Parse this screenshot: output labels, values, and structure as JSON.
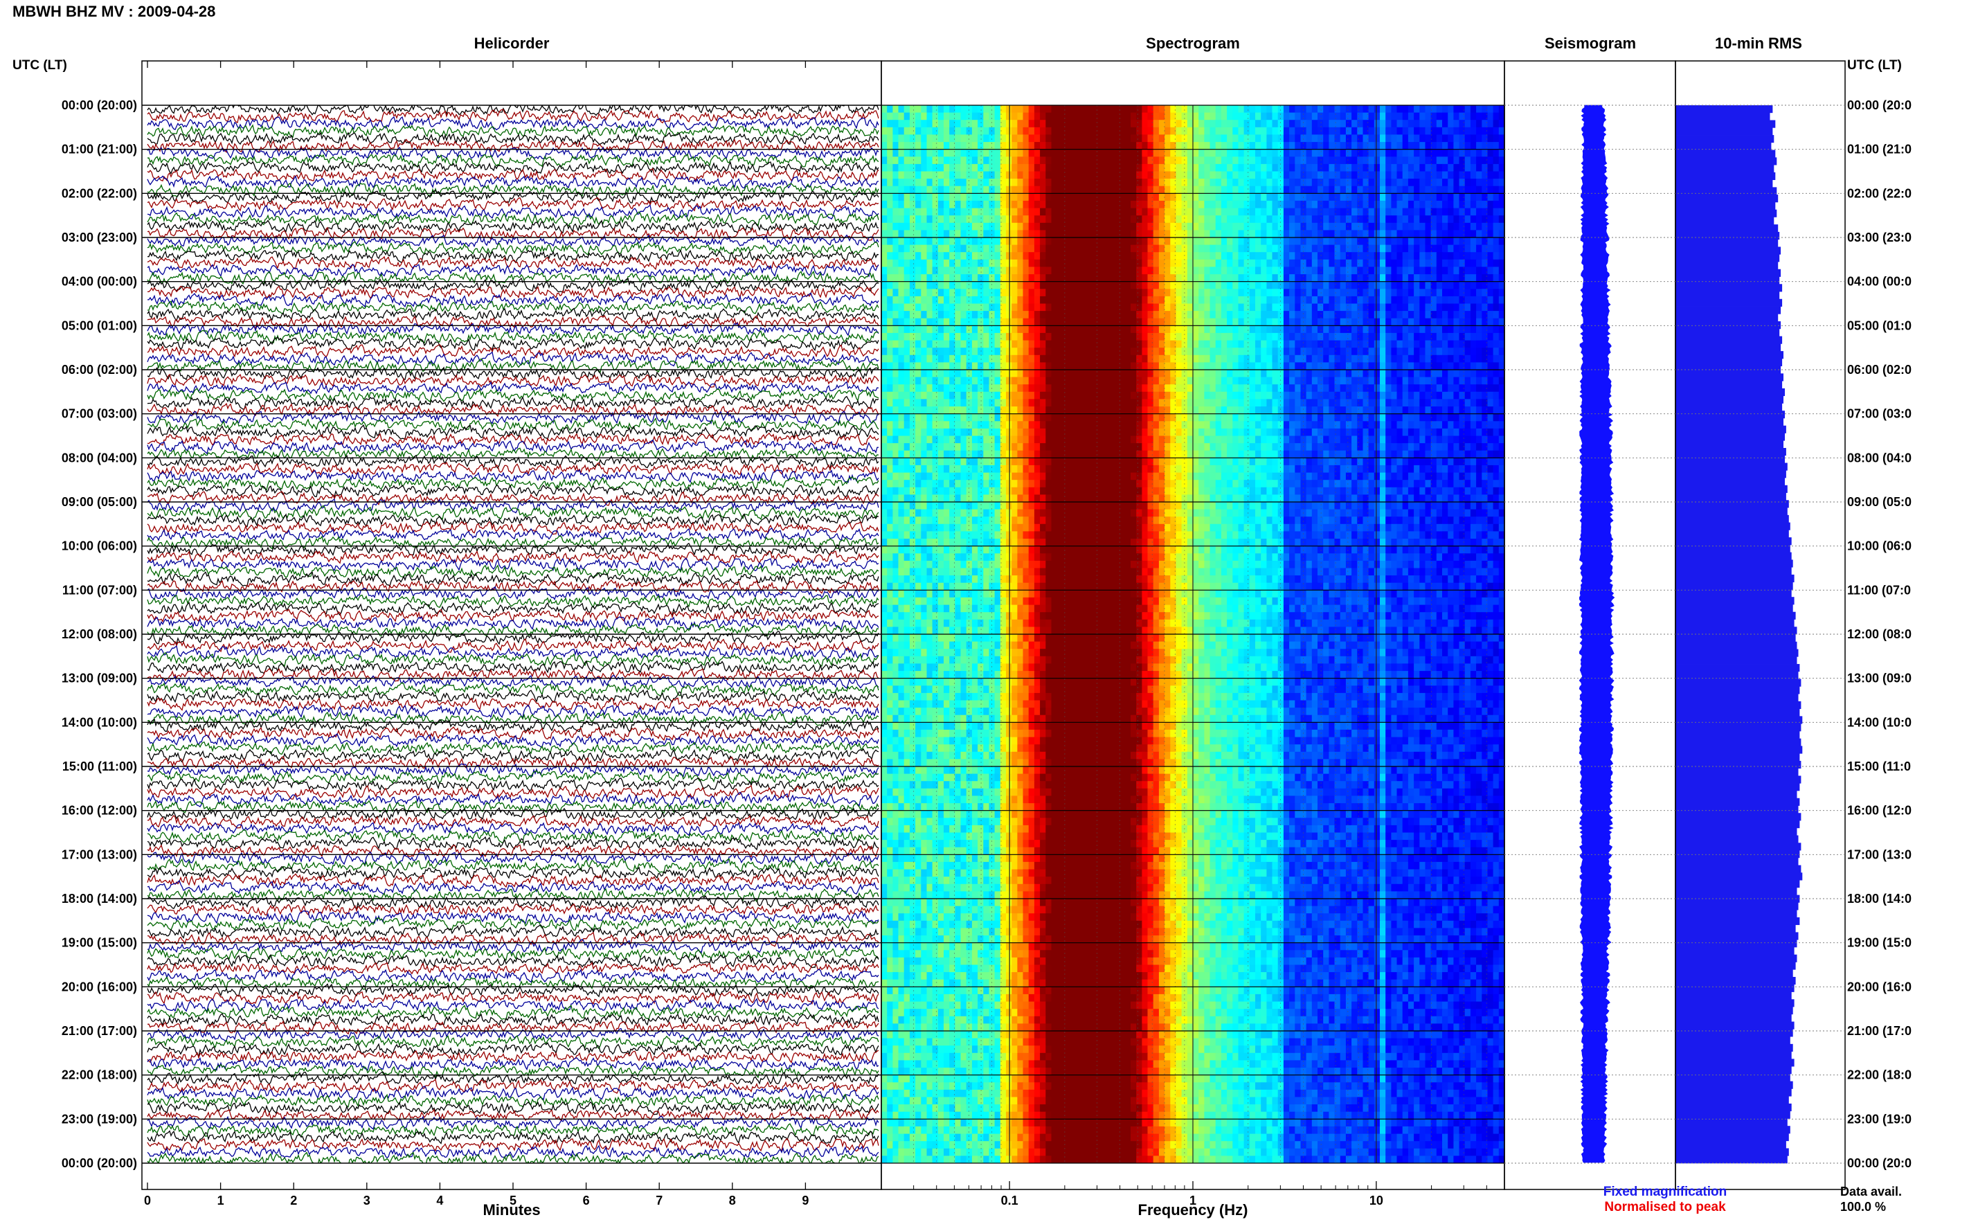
{
  "header": {
    "station_title": "MBWH BHZ MV : 2009-04-28",
    "utc_label_left": "UTC (LT)",
    "utc_label_right": "UTC (LT)"
  },
  "panels": {
    "helicorder_title": "Helicorder",
    "spectrogram_title": "Spectrogram",
    "seismogram_title": "Seismogram",
    "rms_title": "10-min RMS"
  },
  "footer": {
    "minutes_label": "Minutes",
    "frequency_label": "Frequency (Hz)",
    "fixed_magnification": "Fixed magnification",
    "normalised_to_peak": "Normalised to peak",
    "data_avail_label": "Data avail.",
    "data_avail_value": "100.0 %"
  },
  "colors": {
    "trace_cycle": [
      "#000000",
      "#990000",
      "#000099",
      "#006600"
    ],
    "seismogram": "#1010ff",
    "rms": "#1a1aee",
    "fixed_text": "#1a1aee",
    "normalised_text": "#ee0000",
    "spectrogram_colormap": "jet"
  },
  "chart_data": [
    {
      "type": "line",
      "name": "helicorder",
      "x_ticks": [
        "0",
        "1",
        "2",
        "3",
        "4",
        "5",
        "6",
        "7",
        "8",
        "9"
      ],
      "xlim": [
        0,
        10
      ],
      "row_labels_left": [
        "00:00 (20:00)",
        "01:00 (21:00)",
        "02:00 (22:00)",
        "03:00 (23:00)",
        "04:00 (00:00)",
        "05:00 (01:00)",
        "06:00 (02:00)",
        "07:00 (03:00)",
        "08:00 (04:00)",
        "09:00 (05:00)",
        "10:00 (06:00)",
        "11:00 (07:00)",
        "12:00 (08:00)",
        "13:00 (09:00)",
        "14:00 (10:00)",
        "15:00 (11:00)",
        "16:00 (12:00)",
        "17:00 (13:00)",
        "18:00 (14:00)",
        "19:00 (15:00)",
        "20:00 (16:00)",
        "21:00 (17:00)",
        "22:00 (18:00)",
        "23:00 (19:00)",
        "00:00 (20:00)"
      ],
      "row_labels_right": [
        "00:00 (20:0",
        "01:00 (21:0",
        "02:00 (22:0",
        "03:00 (23:0",
        "04:00 (00:0",
        "05:00 (01:0",
        "06:00 (02:0",
        "07:00 (03:0",
        "08:00 (04:0",
        "09:00 (05:0",
        "10:00 (06:0",
        "11:00 (07:0",
        "12:00 (08:0",
        "13:00 (09:0",
        "14:00 (10:0",
        "15:00 (11:0",
        "16:00 (12:0",
        "17:00 (13:0",
        "18:00 (14:0",
        "19:00 (15:0",
        "20:00 (16:0",
        "21:00 (17:0",
        "22:00 (18:0",
        "23:00 (19:0",
        "00:00 (20:0"
      ],
      "traces_per_hour": 6,
      "hours": 24
    },
    {
      "type": "heatmap",
      "name": "spectrogram",
      "x_scale": "log",
      "xlim": [
        0.02,
        50
      ],
      "x_tick_labels": [
        "0.1",
        "1",
        "10"
      ],
      "x_tick_values": [
        0.1,
        1,
        10
      ],
      "dominant_band_hz": [
        0.2,
        0.4
      ],
      "narrow_line_hz": 10.5
    },
    {
      "type": "line",
      "name": "seismogram"
    },
    {
      "type": "bar",
      "name": "rms_10min",
      "orientation": "horizontal",
      "values": [
        0.72,
        0.7,
        0.74,
        0.72,
        0.73,
        0.71,
        0.74,
        0.75,
        0.73,
        0.74,
        0.72,
        0.75,
        0.76,
        0.74,
        0.75,
        0.73,
        0.76,
        0.77,
        0.76,
        0.78,
        0.77,
        0.76,
        0.78,
        0.77,
        0.79,
        0.77,
        0.79,
        0.78,
        0.76,
        0.78,
        0.77,
        0.79,
        0.78,
        0.8,
        0.79,
        0.78,
        0.8,
        0.79,
        0.81,
        0.8,
        0.79,
        0.81,
        0.8,
        0.82,
        0.81,
        0.8,
        0.82,
        0.81,
        0.83,
        0.82,
        0.81,
        0.83,
        0.82,
        0.84,
        0.83,
        0.84,
        0.85,
        0.84,
        0.86,
        0.85,
        0.86,
        0.87,
        0.86,
        0.88,
        0.87,
        0.86,
        0.88,
        0.87,
        0.89,
        0.88,
        0.9,
        0.89,
        0.9,
        0.91,
        0.9,
        0.92,
        0.91,
        0.93,
        0.92,
        0.91,
        0.93,
        0.92,
        0.94,
        0.93,
        0.92,
        0.93,
        0.94,
        0.92,
        0.93,
        0.91,
        0.93,
        0.92,
        0.9,
        0.92,
        0.91,
        0.93,
        0.92,
        0.9,
        0.91,
        0.93,
        0.92,
        0.91,
        0.93,
        0.94,
        0.92,
        0.9,
        0.92,
        0.91,
        0.9,
        0.92,
        0.89,
        0.91,
        0.9,
        0.88,
        0.9,
        0.89,
        0.87,
        0.89,
        0.88,
        0.86,
        0.88,
        0.87,
        0.86,
        0.88,
        0.87,
        0.85,
        0.87,
        0.86,
        0.88,
        0.86,
        0.85,
        0.87,
        0.86,
        0.84,
        0.86,
        0.85,
        0.83,
        0.85,
        0.84,
        0.82,
        0.84,
        0.83
      ]
    }
  ]
}
